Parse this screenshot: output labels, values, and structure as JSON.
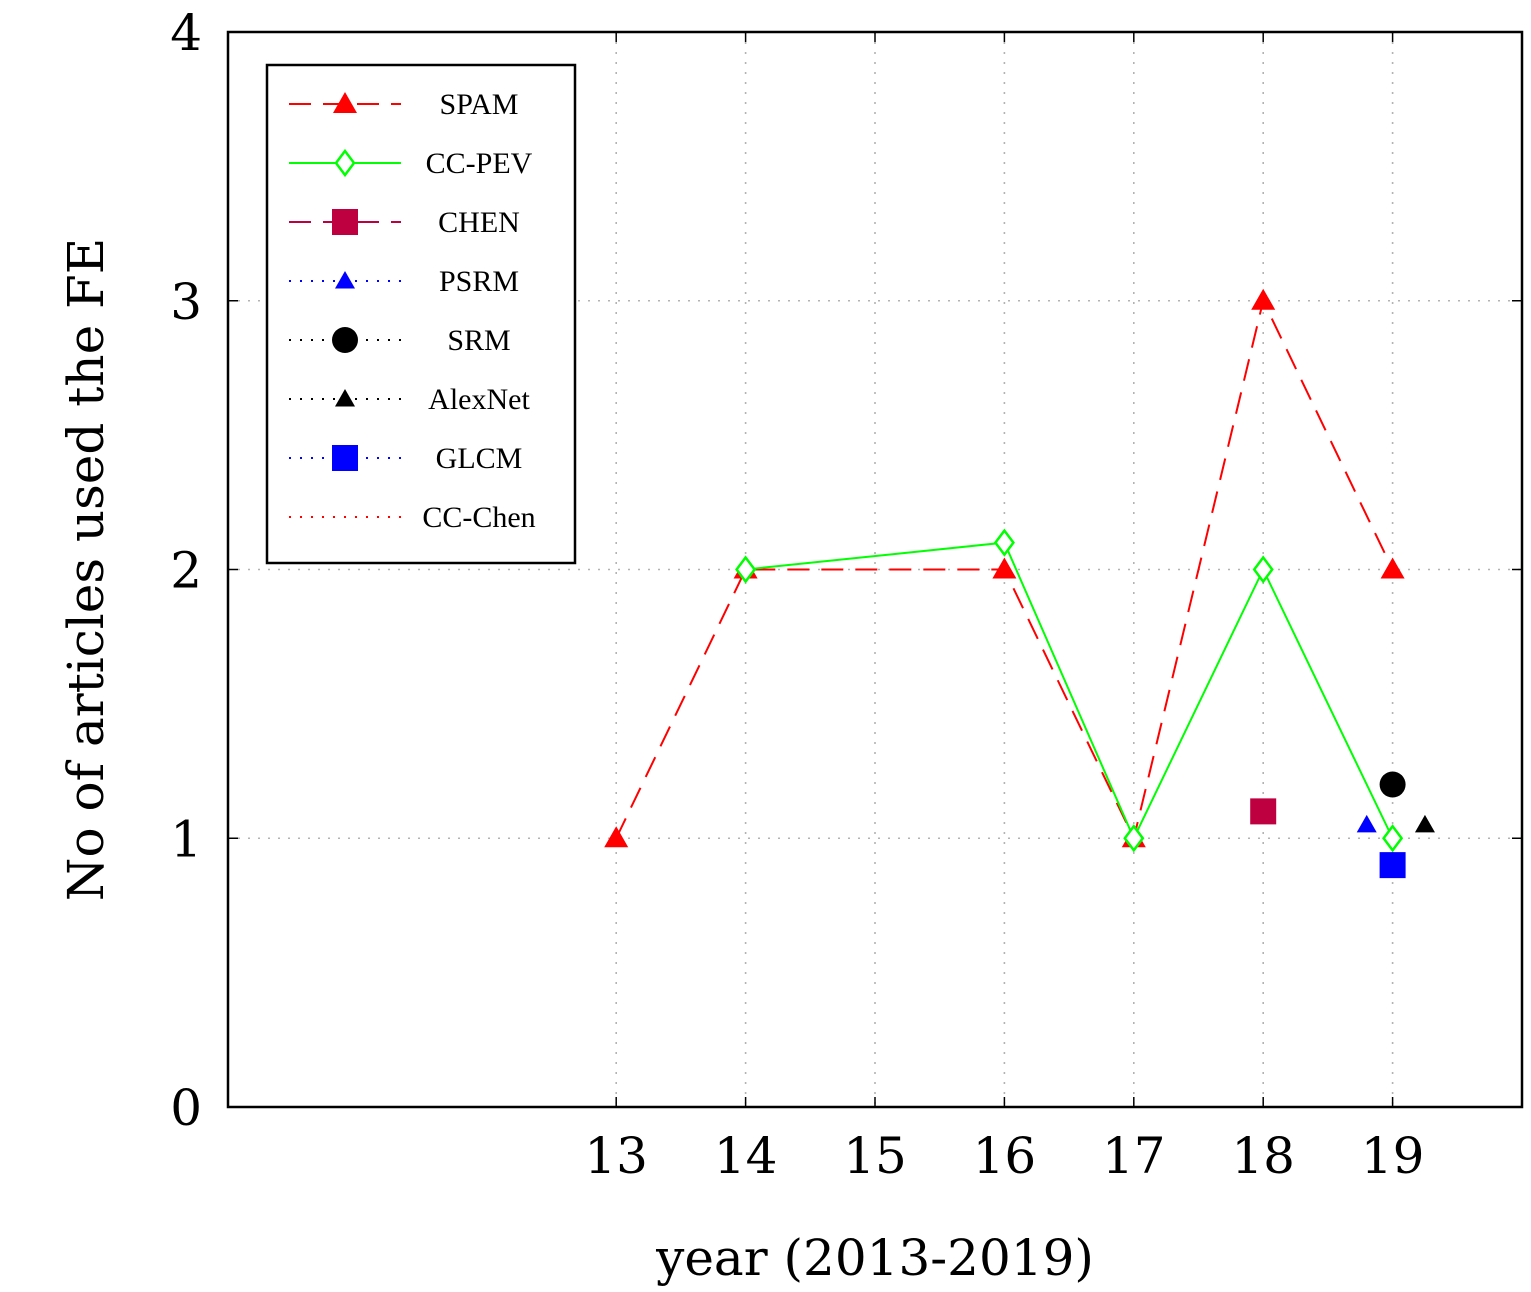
{
  "chart_data": {
    "type": "line",
    "xlabel": "year (2013-2019)",
    "ylabel": "No of articles used the FE",
    "xlim": [
      10,
      20
    ],
    "ylim": [
      0,
      4
    ],
    "xticks": [
      13,
      14,
      15,
      16,
      17,
      18,
      19
    ],
    "xtick_labels": [
      "13",
      "14",
      "15",
      "16",
      "17",
      "18",
      "19"
    ],
    "yticks": [
      0,
      1,
      2,
      3,
      4
    ],
    "ytick_labels": [
      "0",
      "1",
      "2",
      "3",
      "4"
    ],
    "grid": true,
    "legend_position": "top-left",
    "series": [
      {
        "name": "SPAM",
        "color": "#ff0000",
        "line": "dashed",
        "marker": "triangle",
        "x": [
          13,
          14,
          16,
          17,
          18,
          19
        ],
        "y": [
          1,
          2,
          2,
          1,
          3,
          2
        ]
      },
      {
        "name": "CC-PEV",
        "color": "#00ff00",
        "line": "solid",
        "marker": "diamond-open",
        "x": [
          14,
          16,
          17,
          18,
          19
        ],
        "y": [
          2,
          2.1,
          1,
          2,
          1
        ]
      },
      {
        "name": "CHEN",
        "color": "#bf0040",
        "line": "dashed",
        "marker": "square",
        "x": [
          18
        ],
        "y": [
          1.1
        ]
      },
      {
        "name": "PSRM",
        "color": "#0000ff",
        "line": "dotted",
        "marker": "triangle-small",
        "x": [
          18.8
        ],
        "y": [
          1.05
        ]
      },
      {
        "name": "SRM",
        "color": "#000000",
        "line": "dotted",
        "marker": "circle",
        "x": [
          19
        ],
        "y": [
          1.2
        ]
      },
      {
        "name": "AlexNet",
        "color": "#000000",
        "line": "dotted",
        "marker": "triangle-small",
        "x": [
          19.25
        ],
        "y": [
          1.05
        ]
      },
      {
        "name": "GLCM",
        "color": "#0000ff",
        "line": "dotted",
        "marker": "square",
        "x": [
          19
        ],
        "y": [
          0.9
        ]
      },
      {
        "name": "CC-Chen",
        "color": "#ff0000",
        "line": "dotted",
        "marker": "none",
        "x": [],
        "y": []
      }
    ]
  }
}
